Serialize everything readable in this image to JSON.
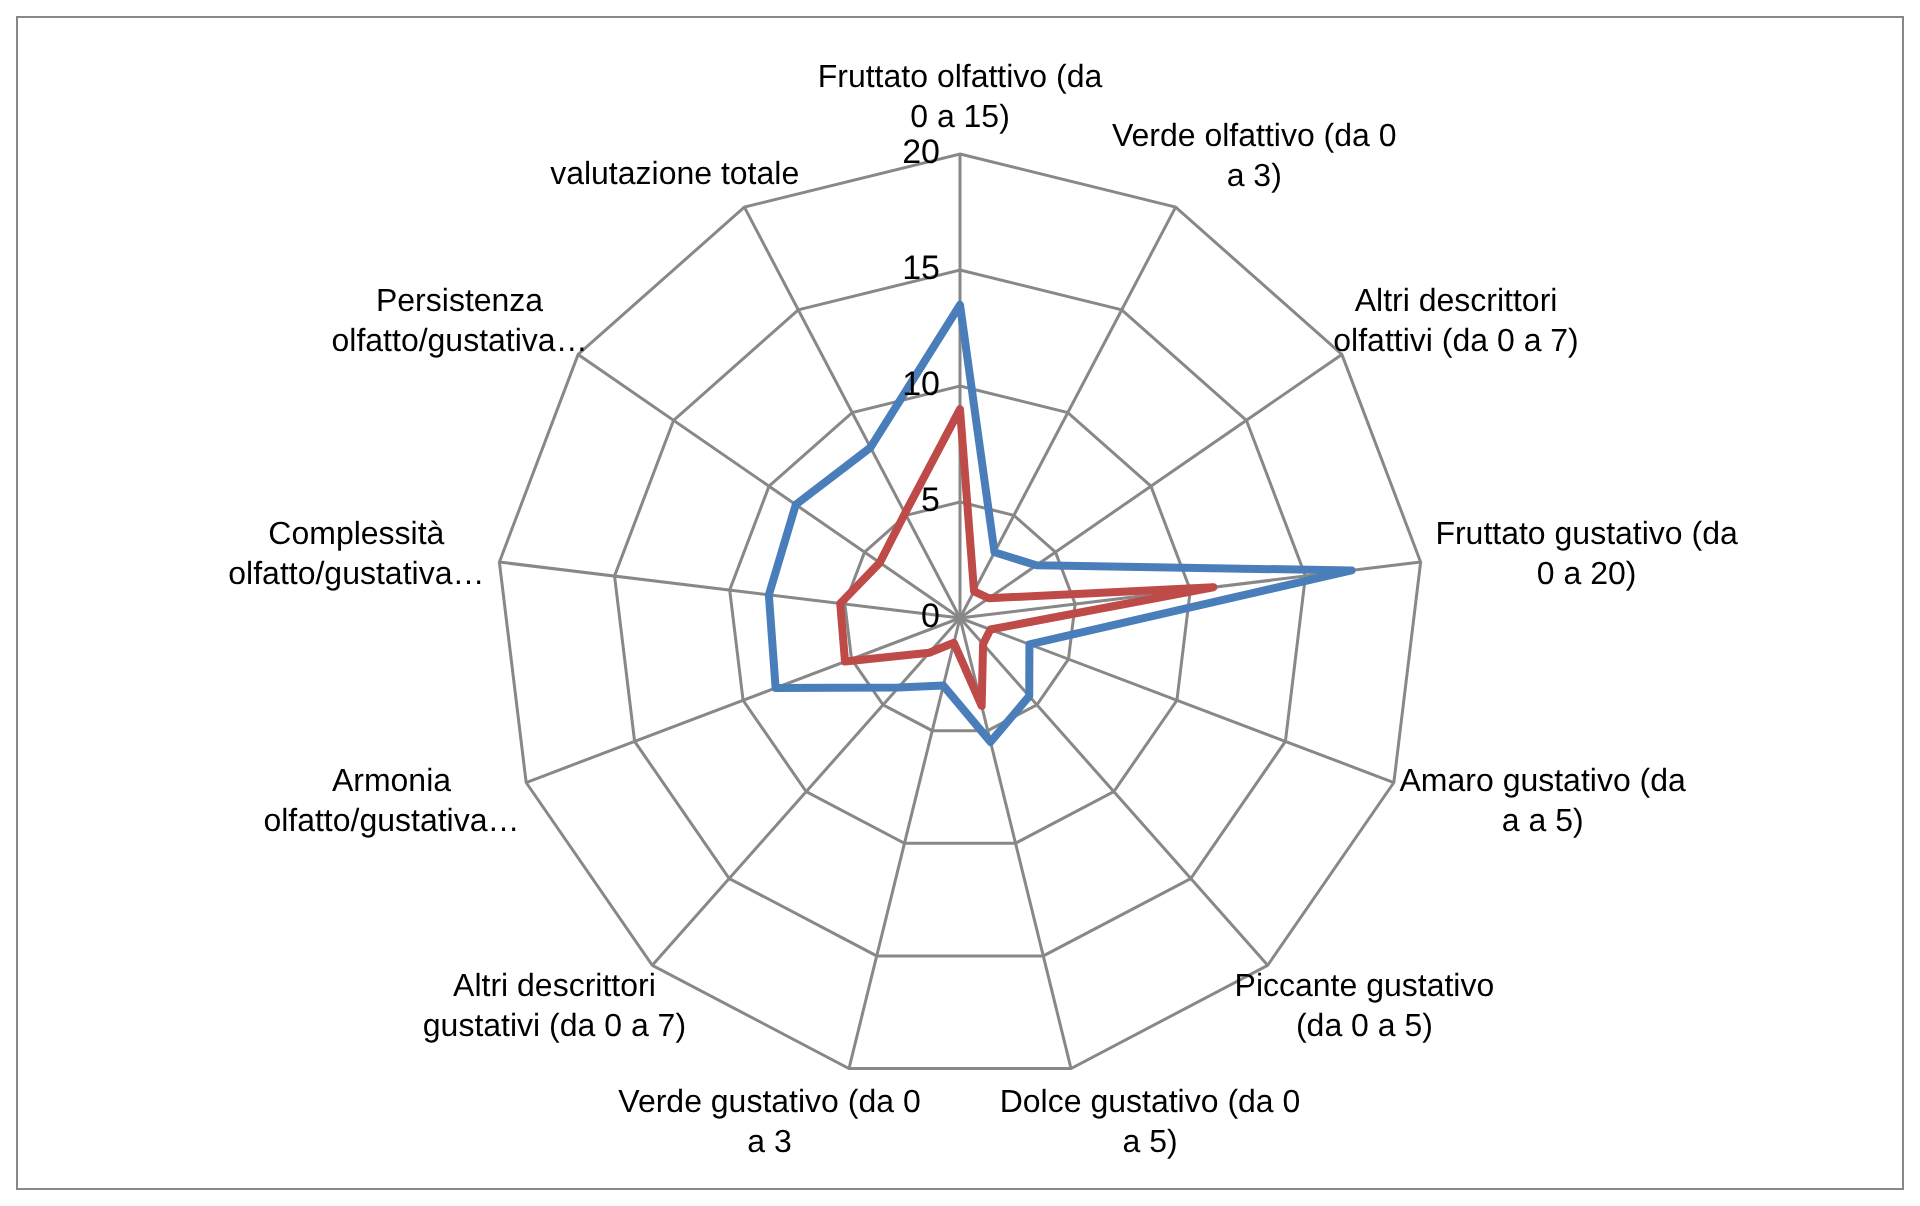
{
  "chart_data": {
    "type": "radar",
    "categories": [
      "Fruttato olfattivo (da 0 a 15)",
      "Verde olfattivo (da 0 a 3)",
      "Altri descrittori olfattivi (da 0 a 7)",
      "Fruttato gustativo (da 0 a 20)",
      "Amaro gustativo (da a a 5)",
      "Piccante gustativo (da 0 a 5)",
      "Dolce gustativo (da 0 a 5)",
      "Verde gustativo (da 0 a 3",
      "Altri descrittori gustativi (da 0 a 7)",
      "Armonia olfatto/gustativa…",
      "Complessità olfatto/gustativa…",
      "Persistenza olfatto/gustativa…",
      "valutazione totale"
    ],
    "series": [
      {
        "color": "#4a7ebb",
        "values": [
          13.5,
          3.2,
          4,
          17,
          3.2,
          4.5,
          5.5,
          3,
          4,
          8.5,
          8.3,
          8.6,
          8.3
        ]
      },
      {
        "color": "#be4b48",
        "values": [
          9,
          1.3,
          1.5,
          11,
          1.4,
          1.5,
          3.9,
          1.1,
          2,
          5.3,
          5.2,
          4.2,
          5.1
        ]
      }
    ],
    "ylim": [
      0,
      20
    ],
    "yticks": [
      0,
      5,
      10,
      15,
      20
    ],
    "grid": true,
    "legend": false,
    "marker": "none"
  }
}
